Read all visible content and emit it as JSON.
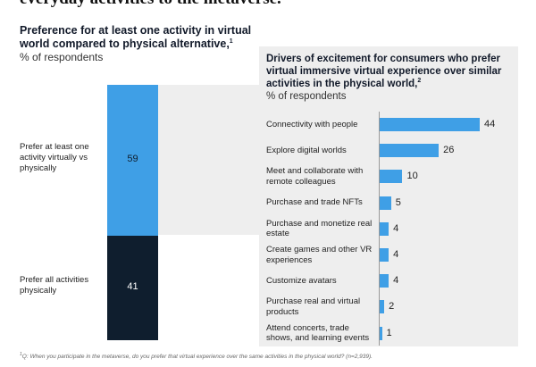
{
  "headline": "everyday activities to the metaverse.",
  "left_chart": {
    "title": "Preference for at least one activity in virtual world compared to physical alternative,",
    "title_note": "1",
    "subtitle": "% of respondents"
  },
  "right_chart": {
    "title": "Drivers of excitement for consumers who prefer virtual immersive virtual experience over similar activities in the physical world,",
    "title_note": "2",
    "subtitle": "% of respondents"
  },
  "footnote": {
    "mark": "1",
    "text": "Q: When you participate in the metaverse, do you prefer that virtual experience over the same activities in the physical world? (n=2,939)."
  },
  "chart_data": [
    {
      "type": "bar",
      "stacked": true,
      "title": "Preference for at least one activity in virtual world compared to physical alternative,",
      "ylabel": "% of respondents",
      "categories": [
        "Prefer at least one activity virtually vs physically",
        "Prefer all activities physically"
      ],
      "values": [
        59,
        41
      ],
      "colors": [
        "#3f9fe6",
        "#0f1e2e"
      ]
    },
    {
      "type": "bar",
      "orientation": "horizontal",
      "title": "Drivers of excitement for consumers who prefer virtual immersive virtual experience over similar activities in the physical world,",
      "xlabel": "% of respondents",
      "xlim": [
        0,
        44
      ],
      "color": "#3f9fe6",
      "categories": [
        "Connectivity with people",
        "Explore digital worlds",
        "Meet and collaborate with remote colleagues",
        "Purchase and trade NFTs",
        "Purchase and monetize real estate",
        "Create games and other VR experiences",
        "Customize avatars",
        "Purchase real and virtual products",
        "Attend concerts, trade shows, and learning events"
      ],
      "values": [
        44,
        26,
        10,
        5,
        4,
        4,
        4,
        2,
        1
      ]
    }
  ]
}
